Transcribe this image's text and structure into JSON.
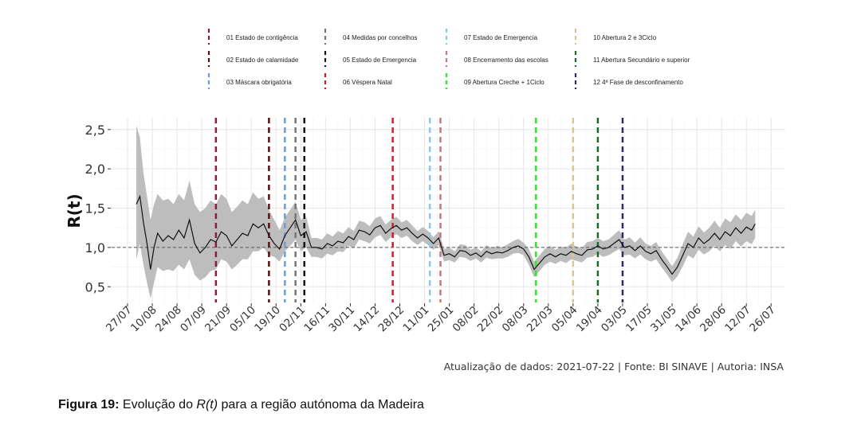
{
  "caption": {
    "prefix": "Figura 19:",
    "part1": " Evolução do ",
    "italic": "R(t)",
    "part2": " para a região autónoma da Madeira"
  },
  "source_note": "Atualização de dados: 2021-07-22 | Fonte: BI SINAVE | Autoria: INSA",
  "chart_data": {
    "type": "line",
    "ylabel": "R(t)",
    "xlabel": "",
    "title": "",
    "yticks": [
      0.5,
      1.0,
      1.5,
      2.0,
      2.5
    ],
    "ytick_labels": [
      "0,5",
      "1,0",
      "1,5",
      "2,0",
      "2,5"
    ],
    "ylim": [
      0.3,
      2.65
    ],
    "xlim": [
      "2020-07-18",
      "2021-08-03"
    ],
    "xticks": [
      {
        "date": "2020-07-27",
        "label": "27/07"
      },
      {
        "date": "2020-08-10",
        "label": "10/08"
      },
      {
        "date": "2020-08-24",
        "label": "24/08"
      },
      {
        "date": "2020-09-07",
        "label": "07/09"
      },
      {
        "date": "2020-09-21",
        "label": "21/09"
      },
      {
        "date": "2020-10-05",
        "label": "05/10"
      },
      {
        "date": "2020-10-19",
        "label": "19/10"
      },
      {
        "date": "2020-11-02",
        "label": "02/11"
      },
      {
        "date": "2020-11-16",
        "label": "16/11"
      },
      {
        "date": "2020-11-30",
        "label": "30/11"
      },
      {
        "date": "2020-12-14",
        "label": "14/12"
      },
      {
        "date": "2020-12-28",
        "label": "28/12"
      },
      {
        "date": "2021-01-11",
        "label": "11/01"
      },
      {
        "date": "2021-01-25",
        "label": "25/01"
      },
      {
        "date": "2021-02-08",
        "label": "08/02"
      },
      {
        "date": "2021-02-22",
        "label": "22/02"
      },
      {
        "date": "2021-03-08",
        "label": "08/03"
      },
      {
        "date": "2021-03-22",
        "label": "22/03"
      },
      {
        "date": "2021-04-05",
        "label": "05/04"
      },
      {
        "date": "2021-04-19",
        "label": "19/04"
      },
      {
        "date": "2021-05-03",
        "label": "03/05"
      },
      {
        "date": "2021-05-17",
        "label": "17/05"
      },
      {
        "date": "2021-05-31",
        "label": "31/05"
      },
      {
        "date": "2021-06-14",
        "label": "14/06"
      },
      {
        "date": "2021-06-28",
        "label": "28/06"
      },
      {
        "date": "2021-07-12",
        "label": "12/07"
      },
      {
        "date": "2021-07-26",
        "label": "26/07"
      }
    ],
    "reference_line": 1.0,
    "grid": true,
    "legend_position": "top",
    "band_color": "#bdbdbd",
    "line_color": "#111111",
    "series": [
      {
        "x": [
          "2020-08-01",
          "2020-08-03",
          "2020-08-05",
          "2020-08-07",
          "2020-08-09",
          "2020-08-11",
          "2020-08-13",
          "2020-08-16",
          "2020-08-19",
          "2020-08-22",
          "2020-08-25",
          "2020-08-28",
          "2020-08-31",
          "2020-09-03",
          "2020-09-06",
          "2020-09-09",
          "2020-09-12",
          "2020-09-15",
          "2020-09-18",
          "2020-09-21",
          "2020-09-24",
          "2020-09-27",
          "2020-09-30",
          "2020-10-03",
          "2020-10-06",
          "2020-10-09",
          "2020-10-12",
          "2020-10-15",
          "2020-10-18",
          "2020-10-21",
          "2020-10-24",
          "2020-10-27",
          "2020-10-30",
          "2020-11-02",
          "2020-11-05",
          "2020-11-08",
          "2020-11-11",
          "2020-11-14",
          "2020-11-17",
          "2020-11-20",
          "2020-11-23",
          "2020-11-26",
          "2020-11-29",
          "2020-12-02",
          "2020-12-05",
          "2020-12-08",
          "2020-12-11",
          "2020-12-14",
          "2020-12-17",
          "2020-12-20",
          "2020-12-23",
          "2020-12-26",
          "2020-12-29",
          "2021-01-01",
          "2021-01-04",
          "2021-01-07",
          "2021-01-10",
          "2021-01-13",
          "2021-01-16",
          "2021-01-19",
          "2021-01-22",
          "2021-01-25",
          "2021-01-28",
          "2021-01-31",
          "2021-02-03",
          "2021-02-06",
          "2021-02-09",
          "2021-02-12",
          "2021-02-15",
          "2021-02-18",
          "2021-02-21",
          "2021-02-24",
          "2021-02-27",
          "2021-03-02",
          "2021-03-05",
          "2021-03-08",
          "2021-03-11",
          "2021-03-14",
          "2021-03-17",
          "2021-03-20",
          "2021-03-23",
          "2021-03-26",
          "2021-03-29",
          "2021-04-01",
          "2021-04-04",
          "2021-04-07",
          "2021-04-10",
          "2021-04-13",
          "2021-04-16",
          "2021-04-19",
          "2021-04-22",
          "2021-04-25",
          "2021-04-28",
          "2021-05-01",
          "2021-05-04",
          "2021-05-07",
          "2021-05-10",
          "2021-05-13",
          "2021-05-16",
          "2021-05-19",
          "2021-05-22",
          "2021-05-25",
          "2021-05-28",
          "2021-05-31",
          "2021-06-03",
          "2021-06-06",
          "2021-06-09",
          "2021-06-12",
          "2021-06-15",
          "2021-06-18",
          "2021-06-21",
          "2021-06-24",
          "2021-06-27",
          "2021-06-30",
          "2021-07-03",
          "2021-07-06",
          "2021-07-09",
          "2021-07-12",
          "2021-07-15",
          "2021-07-17"
        ],
        "y": [
          1.55,
          1.65,
          1.32,
          1.05,
          0.72,
          1.0,
          1.18,
          1.08,
          1.15,
          1.1,
          1.22,
          1.12,
          1.35,
          1.05,
          0.93,
          1.0,
          1.1,
          1.07,
          1.2,
          1.15,
          1.02,
          1.1,
          1.18,
          1.15,
          1.3,
          1.25,
          1.3,
          1.15,
          1.05,
          0.98,
          1.15,
          1.25,
          1.35,
          1.15,
          1.2,
          1.0,
          1.0,
          0.98,
          1.05,
          1.02,
          1.08,
          1.06,
          1.14,
          1.1,
          1.22,
          1.2,
          1.16,
          1.25,
          1.28,
          1.18,
          1.24,
          1.28,
          1.22,
          1.25,
          1.18,
          1.12,
          1.17,
          1.12,
          1.05,
          1.12,
          0.9,
          0.92,
          0.88,
          0.96,
          0.95,
          0.9,
          0.93,
          0.88,
          0.95,
          0.92,
          0.94,
          0.93,
          0.96,
          1.0,
          1.02,
          0.98,
          0.88,
          0.72,
          0.8,
          0.88,
          0.92,
          0.88,
          0.92,
          0.9,
          0.95,
          0.92,
          0.9,
          0.97,
          0.98,
          1.02,
          0.98,
          1.0,
          1.05,
          1.1,
          1.0,
          1.02,
          0.96,
          1.02,
          0.95,
          0.92,
          0.96,
          0.85,
          0.76,
          0.66,
          0.75,
          0.9,
          1.05,
          1.0,
          1.12,
          1.05,
          1.1,
          1.18,
          1.1,
          1.2,
          1.15,
          1.25,
          1.18,
          1.26,
          1.22,
          1.3
        ],
        "lower": [
          0.85,
          1.05,
          0.78,
          0.55,
          0.35,
          0.55,
          0.75,
          0.7,
          0.72,
          0.7,
          0.78,
          0.72,
          0.85,
          0.65,
          0.58,
          0.62,
          0.7,
          0.72,
          0.85,
          0.82,
          0.72,
          0.78,
          0.85,
          0.85,
          0.95,
          0.95,
          1.0,
          0.9,
          0.88,
          0.82,
          0.95,
          1.02,
          1.1,
          0.95,
          1.0,
          0.88,
          0.88,
          0.86,
          0.92,
          0.9,
          0.95,
          0.94,
          1.02,
          0.99,
          1.1,
          1.08,
          1.05,
          1.13,
          1.16,
          1.07,
          1.13,
          1.17,
          1.12,
          1.15,
          1.08,
          1.03,
          1.08,
          1.03,
          0.97,
          1.03,
          0.82,
          0.84,
          0.81,
          0.88,
          0.87,
          0.83,
          0.86,
          0.81,
          0.87,
          0.85,
          0.86,
          0.86,
          0.88,
          0.92,
          0.93,
          0.9,
          0.78,
          0.62,
          0.7,
          0.78,
          0.82,
          0.79,
          0.83,
          0.8,
          0.85,
          0.83,
          0.81,
          0.87,
          0.88,
          0.92,
          0.88,
          0.9,
          0.94,
          0.98,
          0.9,
          0.91,
          0.86,
          0.91,
          0.85,
          0.82,
          0.85,
          0.75,
          0.66,
          0.56,
          0.63,
          0.76,
          0.9,
          0.86,
          0.97,
          0.91,
          0.95,
          1.02,
          0.95,
          1.03,
          0.98,
          1.08,
          1.01,
          1.08,
          1.04,
          1.12
        ],
        "upper": [
          2.55,
          2.4,
          1.95,
          1.65,
          1.35,
          1.55,
          1.68,
          1.6,
          1.62,
          1.55,
          1.68,
          1.6,
          1.85,
          1.55,
          1.45,
          1.5,
          1.6,
          1.55,
          1.68,
          1.62,
          1.45,
          1.52,
          1.6,
          1.55,
          1.7,
          1.62,
          1.65,
          1.48,
          1.35,
          1.22,
          1.38,
          1.48,
          1.58,
          1.35,
          1.4,
          1.12,
          1.12,
          1.1,
          1.18,
          1.14,
          1.21,
          1.18,
          1.26,
          1.21,
          1.34,
          1.32,
          1.27,
          1.37,
          1.4,
          1.29,
          1.35,
          1.39,
          1.32,
          1.35,
          1.28,
          1.21,
          1.26,
          1.21,
          1.13,
          1.21,
          0.98,
          1.0,
          0.95,
          1.04,
          1.03,
          0.97,
          1.0,
          0.95,
          1.03,
          0.99,
          1.02,
          1.0,
          1.04,
          1.08,
          1.11,
          1.06,
          0.98,
          0.82,
          0.9,
          0.98,
          1.02,
          0.97,
          1.01,
          1.0,
          1.05,
          1.01,
          0.99,
          1.07,
          1.08,
          1.12,
          1.08,
          1.1,
          1.16,
          1.22,
          1.1,
          1.13,
          1.06,
          1.13,
          1.05,
          1.02,
          1.07,
          0.95,
          0.86,
          0.76,
          0.87,
          1.04,
          1.2,
          1.14,
          1.27,
          1.19,
          1.25,
          1.34,
          1.25,
          1.37,
          1.32,
          1.42,
          1.35,
          1.44,
          1.4,
          1.48
        ]
      }
    ],
    "events": [
      {
        "id": "01",
        "label": "01 Estado de contigência",
        "date": "2020-09-15",
        "color": "#8b1a4a"
      },
      {
        "id": "02",
        "label": "02 Estado de calamidade",
        "date": "2020-10-15",
        "color": "#5a0f0f"
      },
      {
        "id": "03",
        "label": "03 Máscara obrigatória",
        "date": "2020-10-24",
        "color": "#6a9fd0"
      },
      {
        "id": "04",
        "label": "04 Medidas por concelhos",
        "date": "2020-10-30",
        "color": "#777777"
      },
      {
        "id": "05",
        "label": "05 Estado de Emergencia",
        "date": "2020-11-04",
        "color": "#111111"
      },
      {
        "id": "06",
        "label": "06 Véspera Natal",
        "date": "2020-12-24",
        "color": "#cc2222"
      },
      {
        "id": "07",
        "label": "07 Estado de Emergencia",
        "date": "2021-01-14",
        "color": "#8ec8e8"
      },
      {
        "id": "08",
        "label": "08 Encerramento das escolas",
        "date": "2021-01-20",
        "color": "#c87878"
      },
      {
        "id": "09",
        "label": "09 Abertura Creche + 1Ciclo",
        "date": "2021-03-15",
        "color": "#22ee22"
      },
      {
        "id": "10",
        "label": "10 Abertura 2 e 3Ciclo",
        "date": "2021-04-05",
        "color": "#d8c890"
      },
      {
        "id": "11",
        "label": "11 Abertura Secundário e superior",
        "date": "2021-04-19",
        "color": "#1a6a2a"
      },
      {
        "id": "12",
        "label": "12 4ª Fase de desconfinamento",
        "date": "2021-05-03",
        "color": "#2a2a6a"
      }
    ]
  }
}
